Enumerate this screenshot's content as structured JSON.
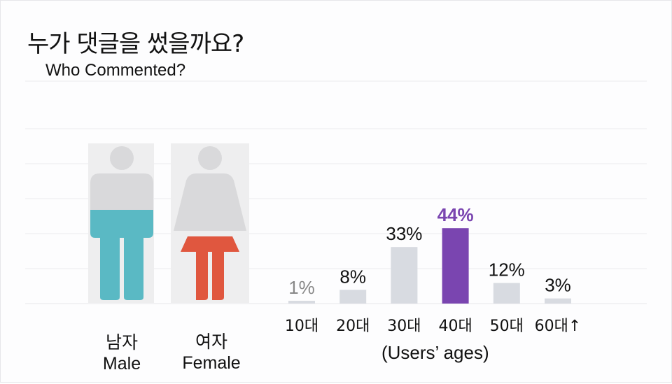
{
  "title": "누가 댓글을 썼을까요?",
  "subtitle": "Who  Commented?",
  "gender": {
    "male": {
      "label_ko": "남자",
      "label_en": "Male",
      "color": "#5ab9c4"
    },
    "female": {
      "label_ko": "여자",
      "label_en": "Female",
      "color": "#e0573f"
    }
  },
  "icon_names": [
    "male-figure-icon",
    "female-figure-icon"
  ],
  "colors": {
    "bar": "#d8dbe1",
    "highlight": "#7a45b0",
    "label": "#111111",
    "low_label": "#888888"
  },
  "chart_data": {
    "type": "bar",
    "categories": [
      "10대",
      "20대",
      "30대",
      "40대",
      "50대",
      "60대↑"
    ],
    "values": [
      1,
      8,
      33,
      44,
      12,
      3
    ],
    "value_labels": [
      "1%",
      "8%",
      "33%",
      "44%",
      "12%",
      "3%"
    ],
    "highlight_index": 3,
    "xlabel": "(Users’ ages)",
    "ylabel": "",
    "ylim": [
      0,
      50
    ],
    "grid": true,
    "legend": "none"
  }
}
